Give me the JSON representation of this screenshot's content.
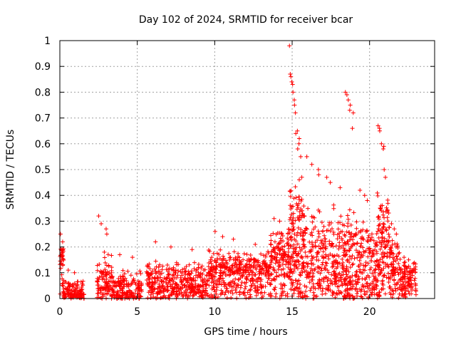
{
  "chart_data": {
    "type": "scatter",
    "title": "Day 102 of 2024, SRMTID for receiver bcar",
    "xlabel": "GPS time / hours",
    "ylabel": "SRMTID / TECUs",
    "xlim": [
      0,
      24.2
    ],
    "ylim": [
      0,
      1
    ],
    "xticks": [
      0,
      5,
      10,
      15,
      20
    ],
    "xtick_labels": [
      "0",
      "5",
      "10",
      "15",
      "20"
    ],
    "yticks": [
      0,
      0.1,
      0.2,
      0.3,
      0.4,
      0.5,
      0.6,
      0.7,
      0.8,
      0.9,
      1
    ],
    "ytick_labels": [
      "0",
      "0.1",
      "0.2",
      "0.3",
      "0.4",
      "0.5",
      "0.6",
      "0.7",
      "0.8",
      "0.9",
      "1"
    ],
    "grid": true,
    "marker": "plus",
    "color": "#ff0000",
    "segments": [
      {
        "x": [
          0.0,
          0.25
        ],
        "baseline": 0.16,
        "spread": 0.09,
        "peaks": [
          0.25,
          0.22
        ],
        "n": 40
      },
      {
        "x": [
          0.25,
          1.6
        ],
        "baseline": 0.03,
        "spread": 0.06,
        "peaks": [
          0.11,
          0.1
        ],
        "n": 120
      },
      {
        "x": [
          2.4,
          3.4
        ],
        "baseline": 0.08,
        "spread": 0.14,
        "peaks": [
          0.32,
          0.29,
          0.27,
          0.25
        ],
        "n": 110
      },
      {
        "x": [
          3.4,
          5.3
        ],
        "baseline": 0.04,
        "spread": 0.1,
        "peaks": [
          0.17,
          0.16
        ],
        "n": 170
      },
      {
        "x": [
          5.6,
          9.6
        ],
        "baseline": 0.07,
        "spread": 0.1,
        "peaks": [
          0.22,
          0.2,
          0.19
        ],
        "n": 380
      },
      {
        "x": [
          9.6,
          13.6
        ],
        "baseline": 0.11,
        "spread": 0.11,
        "peaks": [
          0.26,
          0.24,
          0.23,
          0.21
        ],
        "n": 420
      },
      {
        "x": [
          13.6,
          14.8
        ],
        "baseline": 0.17,
        "spread": 0.14,
        "peaks": [
          0.31,
          0.3
        ],
        "n": 150
      },
      {
        "x": [
          14.8,
          15.8
        ],
        "baseline": 0.24,
        "spread": 0.36,
        "peaks": [
          0.98,
          0.87,
          0.86,
          0.84,
          0.83,
          0.8,
          0.77,
          0.75,
          0.72,
          0.65,
          0.64,
          0.62,
          0.6,
          0.58,
          0.55
        ],
        "n": 180
      },
      {
        "x": [
          15.8,
          18.4
        ],
        "baseline": 0.16,
        "spread": 0.28,
        "peaks": [
          0.55,
          0.52,
          0.5,
          0.48,
          0.47,
          0.45,
          0.43
        ],
        "n": 300
      },
      {
        "x": [
          18.4,
          19.2
        ],
        "baseline": 0.15,
        "spread": 0.33,
        "peaks": [
          0.8,
          0.79,
          0.77,
          0.75,
          0.73,
          0.72,
          0.66
        ],
        "n": 120
      },
      {
        "x": [
          19.2,
          20.5
        ],
        "baseline": 0.14,
        "spread": 0.25,
        "peaks": [
          0.42,
          0.4,
          0.38
        ],
        "n": 150
      },
      {
        "x": [
          20.5,
          21.3
        ],
        "baseline": 0.22,
        "spread": 0.3,
        "peaks": [
          0.67,
          0.66,
          0.65,
          0.6,
          0.59,
          0.58,
          0.5,
          0.47
        ],
        "n": 130
      },
      {
        "x": [
          21.3,
          22.0
        ],
        "baseline": 0.14,
        "spread": 0.16,
        "peaks": [
          0.29,
          0.27,
          0.25
        ],
        "n": 80
      },
      {
        "x": [
          22.0,
          23.0
        ],
        "baseline": 0.08,
        "spread": 0.1,
        "peaks": [
          0.16,
          0.15
        ],
        "n": 110
      }
    ]
  }
}
